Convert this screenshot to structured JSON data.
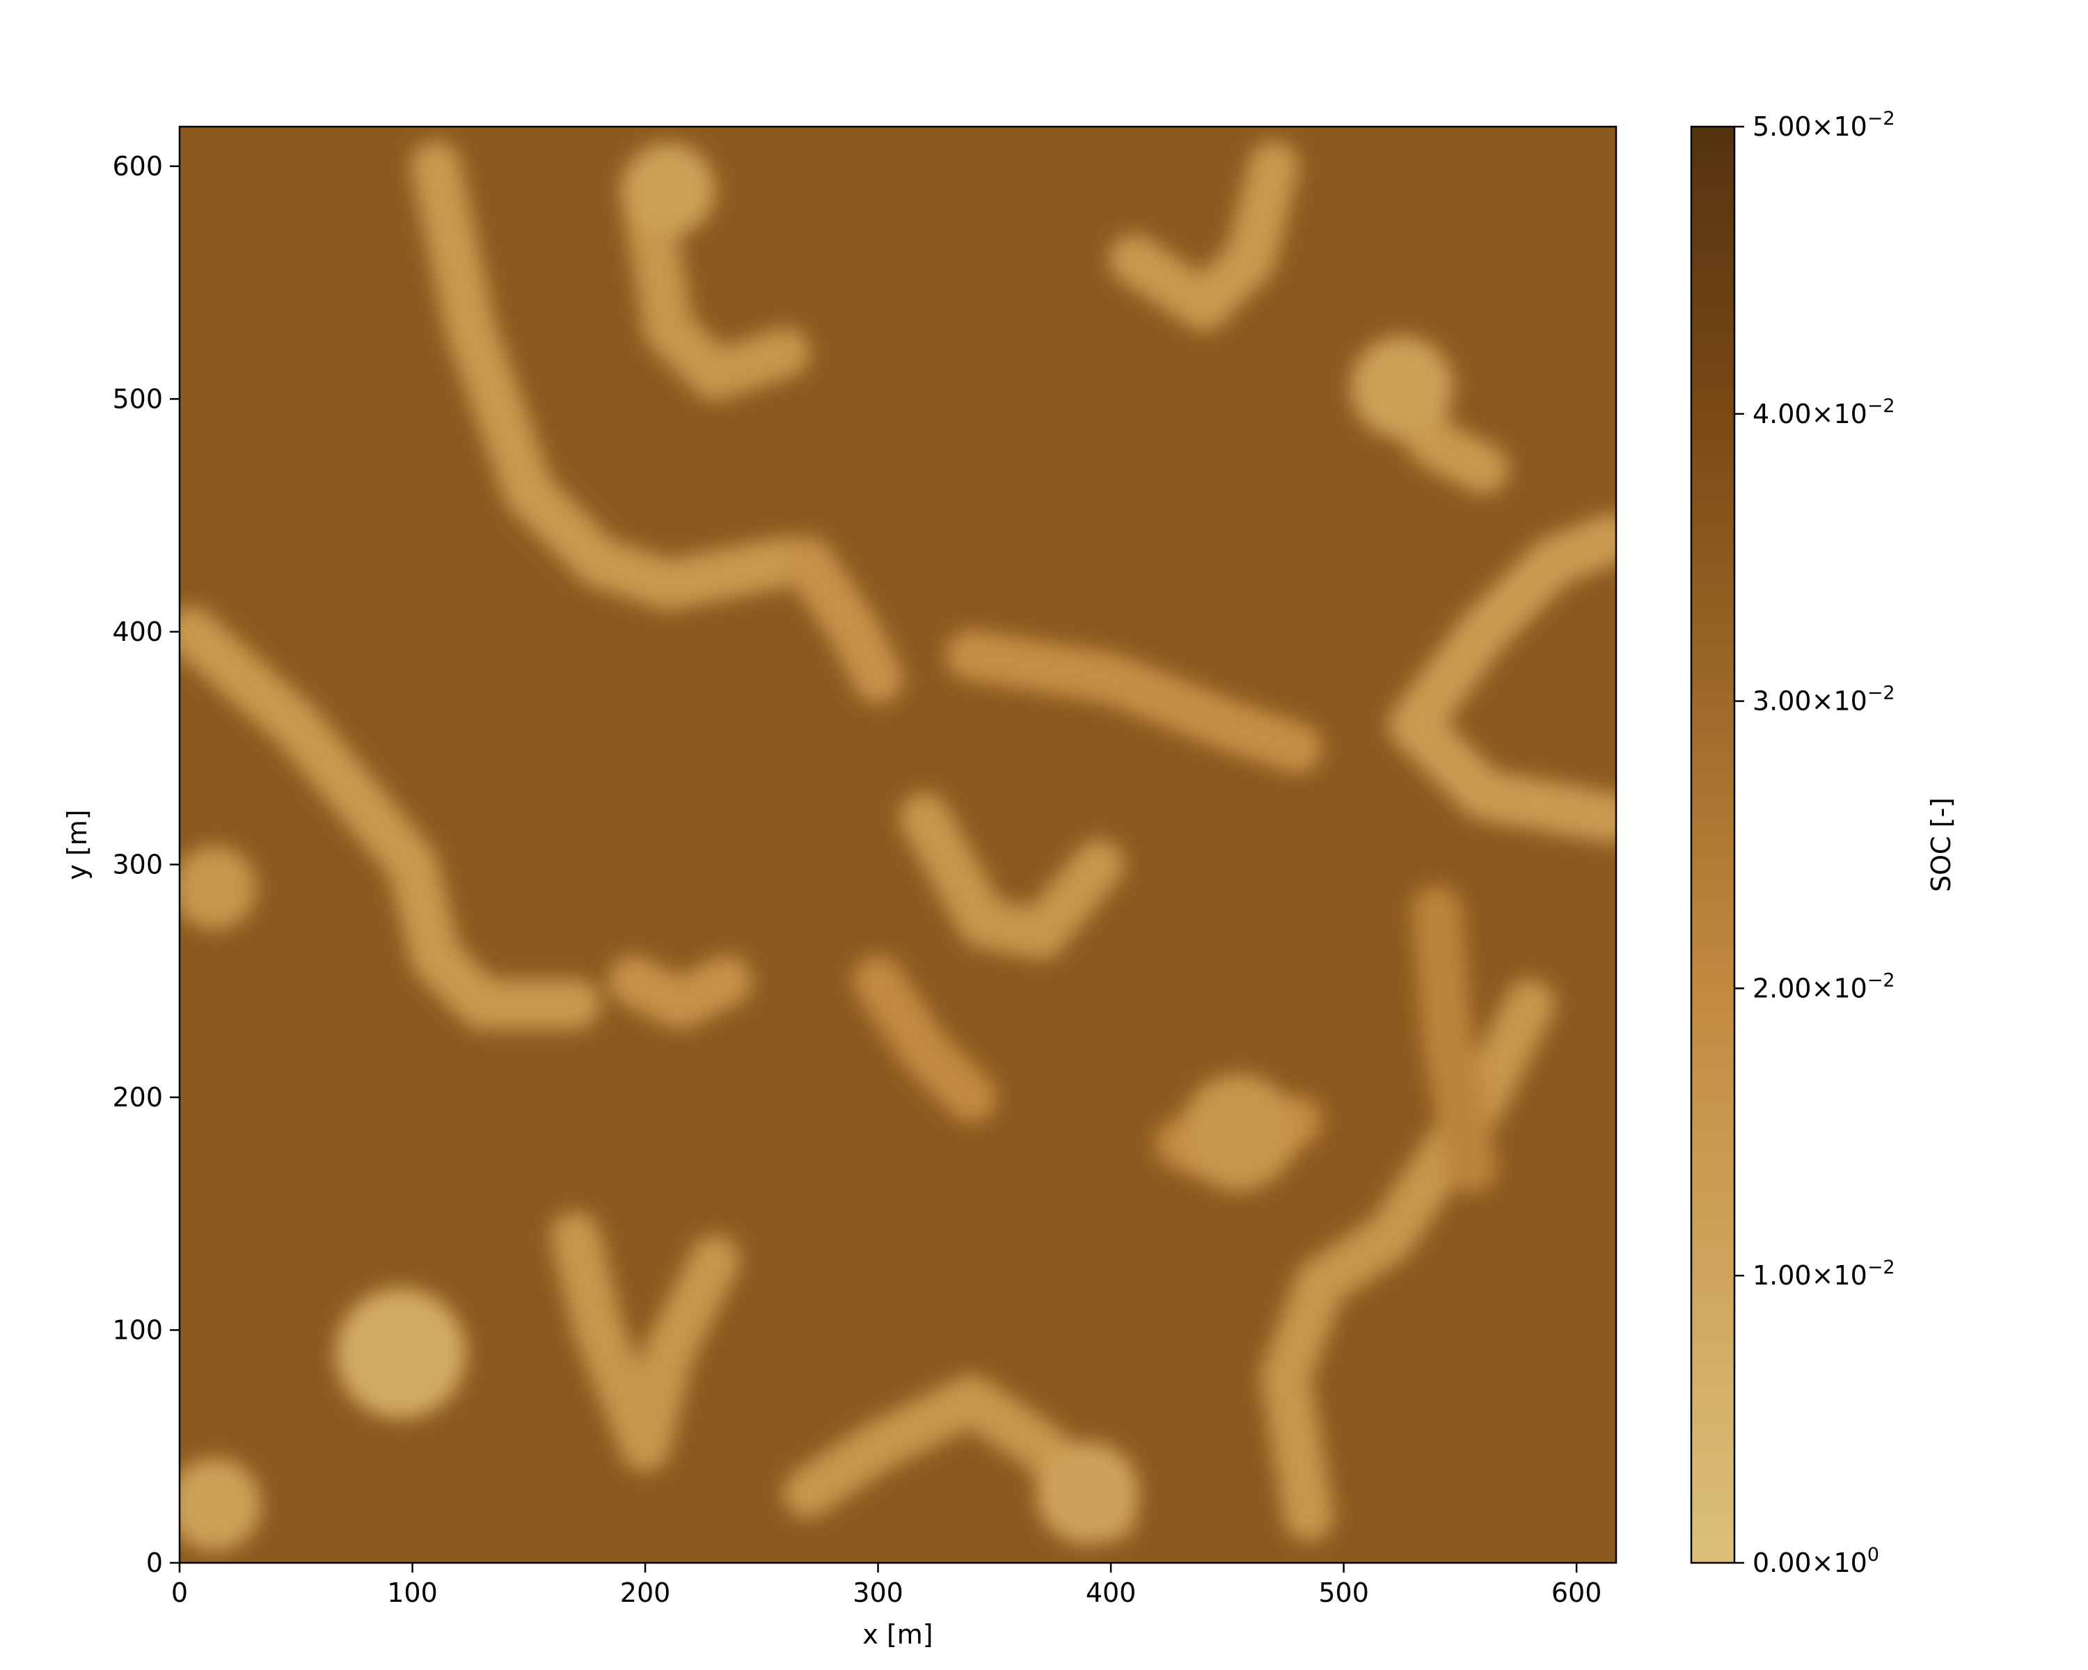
{
  "chart_data": {
    "type": "heatmap",
    "xlabel": "x [m]",
    "ylabel": "y [m]",
    "xlim": [
      0,
      617
    ],
    "ylim": [
      0,
      617
    ],
    "xticks": [
      0,
      100,
      200,
      300,
      400,
      500,
      600
    ],
    "yticks": [
      0,
      100,
      200,
      300,
      400,
      500,
      600
    ],
    "colorbar": {
      "label": "SOC [-]",
      "range": [
        0,
        0.05
      ],
      "ticks": [
        {
          "value": 0.0,
          "mantissa": "0.00",
          "exponent": "0"
        },
        {
          "value": 0.01,
          "mantissa": "1.00",
          "exponent": "−2"
        },
        {
          "value": 0.02,
          "mantissa": "2.00",
          "exponent": "−2"
        },
        {
          "value": 0.03,
          "mantissa": "3.00",
          "exponent": "−2"
        },
        {
          "value": 0.04,
          "mantissa": "4.00",
          "exponent": "−2"
        },
        {
          "value": 0.05,
          "mantissa": "5.00",
          "exponent": "−2"
        }
      ],
      "colors": [
        "#dcc07a",
        "#c28a3f",
        "#7a4914",
        "#553310"
      ]
    },
    "background_value": 0.035,
    "bands": [
      {
        "value": 0.015,
        "points": [
          [
            5,
            400
          ],
          [
            50,
            360
          ],
          [
            100,
            300
          ],
          [
            110,
            260
          ],
          [
            130,
            240
          ],
          [
            170,
            240
          ]
        ]
      },
      {
        "value": 0.015,
        "points": [
          [
            110,
            600
          ],
          [
            125,
            530
          ],
          [
            150,
            460
          ],
          [
            180,
            430
          ],
          [
            210,
            420
          ],
          [
            260,
            430
          ]
        ]
      },
      {
        "value": 0.016,
        "points": [
          [
            200,
            590
          ],
          [
            210,
            530
          ],
          [
            230,
            510
          ],
          [
            260,
            520
          ]
        ]
      },
      {
        "value": 0.017,
        "points": [
          [
            270,
            430
          ],
          [
            290,
            400
          ],
          [
            300,
            380
          ]
        ]
      },
      {
        "value": 0.016,
        "points": [
          [
            320,
            320
          ],
          [
            345,
            275
          ],
          [
            370,
            270
          ],
          [
            395,
            300
          ]
        ]
      },
      {
        "value": 0.018,
        "points": [
          [
            340,
            390
          ],
          [
            400,
            380
          ],
          [
            450,
            360
          ],
          [
            480,
            350
          ]
        ]
      },
      {
        "value": 0.015,
        "points": [
          [
            410,
            560
          ],
          [
            440,
            540
          ],
          [
            460,
            560
          ],
          [
            470,
            600
          ]
        ]
      },
      {
        "value": 0.015,
        "points": [
          [
            515,
            510
          ],
          [
            540,
            480
          ],
          [
            560,
            470
          ]
        ]
      },
      {
        "value": 0.014,
        "points": [
          [
            615,
            440
          ],
          [
            590,
            430
          ],
          [
            560,
            400
          ],
          [
            530,
            360
          ],
          [
            560,
            330
          ],
          [
            615,
            320
          ]
        ]
      },
      {
        "value": 0.016,
        "points": [
          [
            485,
            20
          ],
          [
            475,
            80
          ],
          [
            490,
            120
          ],
          [
            520,
            140
          ],
          [
            560,
            200
          ],
          [
            580,
            240
          ]
        ]
      },
      {
        "value": 0.016,
        "points": [
          [
            270,
            30
          ],
          [
            300,
            50
          ],
          [
            340,
            70
          ],
          [
            370,
            50
          ],
          [
            400,
            20
          ]
        ]
      },
      {
        "value": 0.016,
        "points": [
          [
            170,
            140
          ],
          [
            180,
            100
          ],
          [
            200,
            50
          ],
          [
            210,
            90
          ],
          [
            230,
            130
          ]
        ]
      },
      {
        "value": 0.017,
        "points": [
          [
            195,
            250
          ],
          [
            215,
            240
          ],
          [
            235,
            250
          ]
        ]
      },
      {
        "value": 0.02,
        "points": [
          [
            430,
            180
          ],
          [
            455,
            170
          ],
          [
            480,
            190
          ]
        ]
      },
      {
        "value": 0.02,
        "points": [
          [
            300,
            250
          ],
          [
            320,
            220
          ],
          [
            340,
            200
          ]
        ]
      },
      {
        "value": 0.022,
        "points": [
          [
            540,
            280
          ],
          [
            545,
            220
          ],
          [
            555,
            170
          ]
        ]
      }
    ],
    "blobs": [
      {
        "x": 95,
        "y": 90,
        "r": 28,
        "value": 0.008
      },
      {
        "x": 15,
        "y": 25,
        "r": 20,
        "value": 0.012
      },
      {
        "x": 15,
        "y": 290,
        "r": 18,
        "value": 0.016
      },
      {
        "x": 210,
        "y": 590,
        "r": 20,
        "value": 0.012
      },
      {
        "x": 525,
        "y": 505,
        "r": 22,
        "value": 0.012
      },
      {
        "x": 390,
        "y": 30,
        "r": 22,
        "value": 0.011
      },
      {
        "x": 455,
        "y": 185,
        "r": 25,
        "value": 0.016
      }
    ]
  }
}
